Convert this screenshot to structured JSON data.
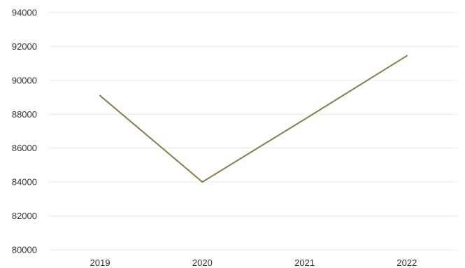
{
  "chart_data": {
    "type": "line",
    "categories": [
      "2019",
      "2020",
      "2021",
      "2022"
    ],
    "series": [
      {
        "values": [
          89100,
          84000,
          87700,
          91450
        ]
      }
    ],
    "ylim": [
      80000,
      94000
    ],
    "yticks": [
      "80000",
      "82000",
      "84000",
      "86000",
      "88000",
      "90000",
      "92000",
      "94000"
    ],
    "grid": true,
    "legend": "none",
    "colors": {
      "series": "#7f8347",
      "grid": "#e9e9e9",
      "text": "#333333"
    }
  }
}
